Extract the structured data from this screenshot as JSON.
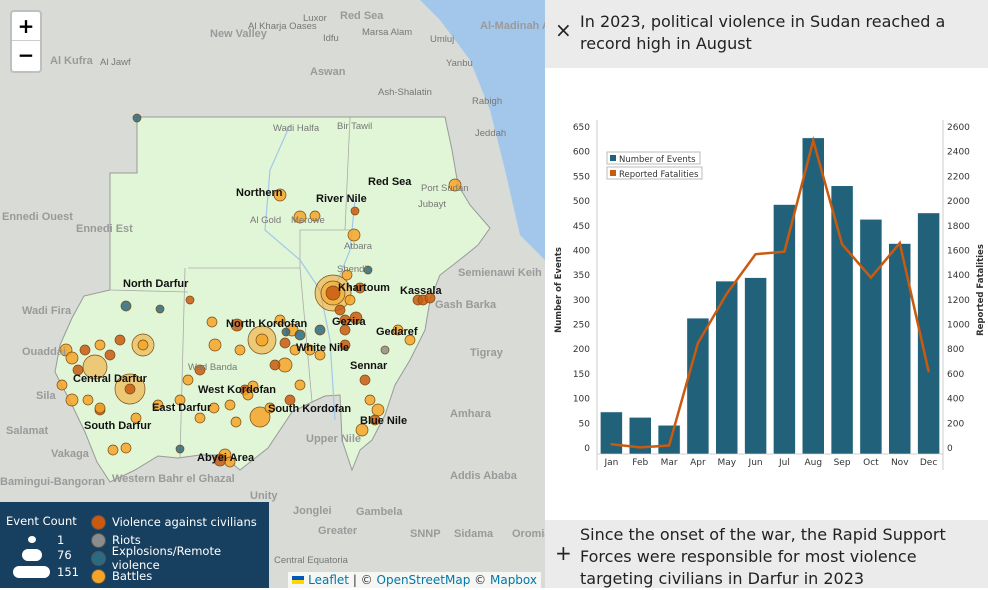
{
  "map": {
    "zoom_in": "+",
    "zoom_out": "−",
    "labels": [
      "New Valley",
      "Al Kufra",
      "Al Jawf",
      "Luxor",
      "Red Sea",
      "Al Kharja Oases",
      "Idfu",
      "Aswan",
      "Marsa Alam",
      "Umluj",
      "Yanbu",
      "Al-Madinah Al Monawara",
      "Ash-Shalatin",
      "Rabigh",
      "Jeddah",
      "Wadi Halfa",
      "Bir Tawil",
      "Northern",
      "River Nile",
      "Red Sea",
      "Port Sudan",
      "Jubayt",
      "Al Gold",
      "Merowe",
      "Atbara",
      "Ennedi Ouest",
      "Ennedi Est",
      "Shendi",
      "Khartoum",
      "Kassala",
      "North Darfur",
      "Semienawi Keih Bahri",
      "Gash Barka",
      "Wadi Fira",
      "North Kordofan",
      "Gezira",
      "Gedaref",
      "Ouaddai",
      "White Nile",
      "Sennar",
      "Tigray",
      "Central Darfur",
      "Wad Banda",
      "West Kordofan",
      "South Kordofan",
      "South Darfur",
      "East Darfur",
      "Blue Nile",
      "Sila",
      "Salamat",
      "Amhara",
      "Upper Nile",
      "Vakaga",
      "Abyei Area",
      "Western Bahr el Ghazal",
      "Unity",
      "Addis Ababa",
      "Bamingui-Bangoran",
      "Jonglei",
      "Gambela",
      "Greater",
      "SNNP",
      "Sidama",
      "Central Equatoria",
      "Oromia"
    ],
    "colors": {
      "violence_against_civilians": "#c95a10",
      "riots": "#8c8c8c",
      "explosions": "#2b6a80",
      "battles": "#f5a428",
      "sudan_fill": "#e1f6d6",
      "water": "#a3c7ea"
    }
  },
  "legend": {
    "title": "Event Count",
    "sizes": [
      "1",
      "76",
      "151"
    ],
    "types": [
      "Violence against civilians",
      "Riots",
      "Explosions/Remote violence",
      "Battles"
    ]
  },
  "attribution": {
    "leaflet": "Leaflet",
    "sep": " | © ",
    "osm": "OpenStreetMap",
    "sep2": " © ",
    "mapbox": "Mapbox"
  },
  "panel": {
    "top_title": "In 2023, political violence in Sudan reached a record high in August",
    "bottom_title": "Since the onset of the war, the Rapid Support Forces were responsible for most violence targeting civilians in Darfur in 2023",
    "close_icon": "×",
    "expand_icon": "+"
  },
  "chart_data": {
    "type": "bar+line",
    "categories": [
      "Jan",
      "Feb",
      "Mar",
      "Apr",
      "May",
      "Jun",
      "Jul",
      "Aug",
      "Sep",
      "Oct",
      "Nov",
      "Dec"
    ],
    "series": [
      {
        "name": "Number of Events",
        "type": "bar",
        "axis": "left",
        "color": "#21627a",
        "values": [
          73,
          62,
          46,
          263,
          338,
          345,
          493,
          628,
          531,
          463,
          414,
          476
        ]
      },
      {
        "name": "Reported Fatalities",
        "type": "line",
        "axis": "right",
        "color": "#c95a10",
        "values": [
          30,
          5,
          20,
          850,
          1250,
          1570,
          1590,
          2490,
          1650,
          1380,
          1660,
          620
        ]
      }
    ],
    "ylabel_left": "Number of Events",
    "ylabel_right": "Reported Fatalities",
    "ylim_left": [
      0,
      650
    ],
    "ylim_right": [
      0,
      2600
    ],
    "yticks_left": [
      "0",
      "50",
      "100",
      "150",
      "200",
      "250",
      "300",
      "350",
      "400",
      "450",
      "500",
      "550",
      "600",
      "650"
    ],
    "yticks_right": [
      "0",
      "200",
      "400",
      "600",
      "800",
      "1000",
      "1200",
      "1400",
      "1600",
      "1800",
      "2000",
      "2200",
      "2400",
      "2600"
    ],
    "legend_position": "top-left",
    "grid": false
  }
}
